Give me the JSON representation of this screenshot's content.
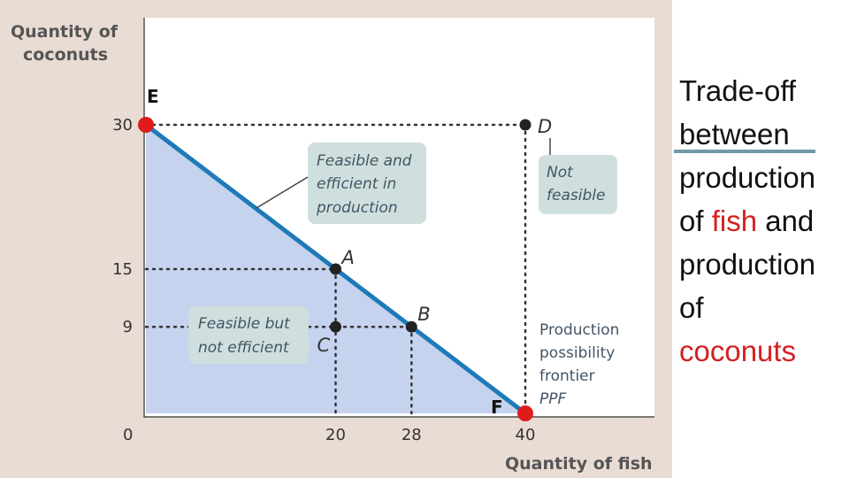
{
  "side_text": {
    "line1": "Trade-off",
    "line2": "between",
    "line3": "production",
    "line4_pre": "of ",
    "line4_highlight": "fish",
    "line4_post": " and",
    "line5": "production",
    "line6": "of",
    "line7_highlight": "coconuts",
    "highlight_color": "#d42020"
  },
  "chart_data": {
    "type": "line",
    "title": "",
    "xlabel": "Quantity of fish",
    "ylabel_line1": "Quantity of",
    "ylabel_line2": "coconuts",
    "xlim": [
      0,
      40
    ],
    "ylim": [
      0,
      30
    ],
    "origin_label": "0",
    "x_ticks": [
      "20",
      "28",
      "40"
    ],
    "y_ticks": [
      "30",
      "15",
      "9"
    ],
    "series": [
      {
        "name": "PPF",
        "points": [
          {
            "x": 0,
            "y": 30
          },
          {
            "x": 40,
            "y": 0
          }
        ]
      }
    ],
    "points": [
      {
        "label": "E",
        "x": 0,
        "y": 30,
        "color": "#e01b1b"
      },
      {
        "label": "D",
        "x": 40,
        "y": 30,
        "color": "#222222"
      },
      {
        "label": "A",
        "x": 20,
        "y": 15,
        "color": "#222222"
      },
      {
        "label": "B",
        "x": 28,
        "y": 9,
        "color": "#222222"
      },
      {
        "label": "C",
        "x": 20,
        "y": 9,
        "color": "#222222"
      },
      {
        "label": "F",
        "x": 40,
        "y": 0,
        "color": "#e01b1b"
      }
    ],
    "annotations": {
      "efficient": [
        "Feasible and",
        "efficient in",
        "production"
      ],
      "not_feasible": [
        "Not",
        "feasible"
      ],
      "inefficient": [
        "Feasible but",
        "not efficient"
      ],
      "frontier": [
        "Production",
        "possibility",
        "frontier",
        "PPF"
      ]
    },
    "colors": {
      "feasible_area": "#c5d3ee",
      "frontier_line": "#1e7ab8",
      "box_fill": "#cfdfdd"
    }
  }
}
